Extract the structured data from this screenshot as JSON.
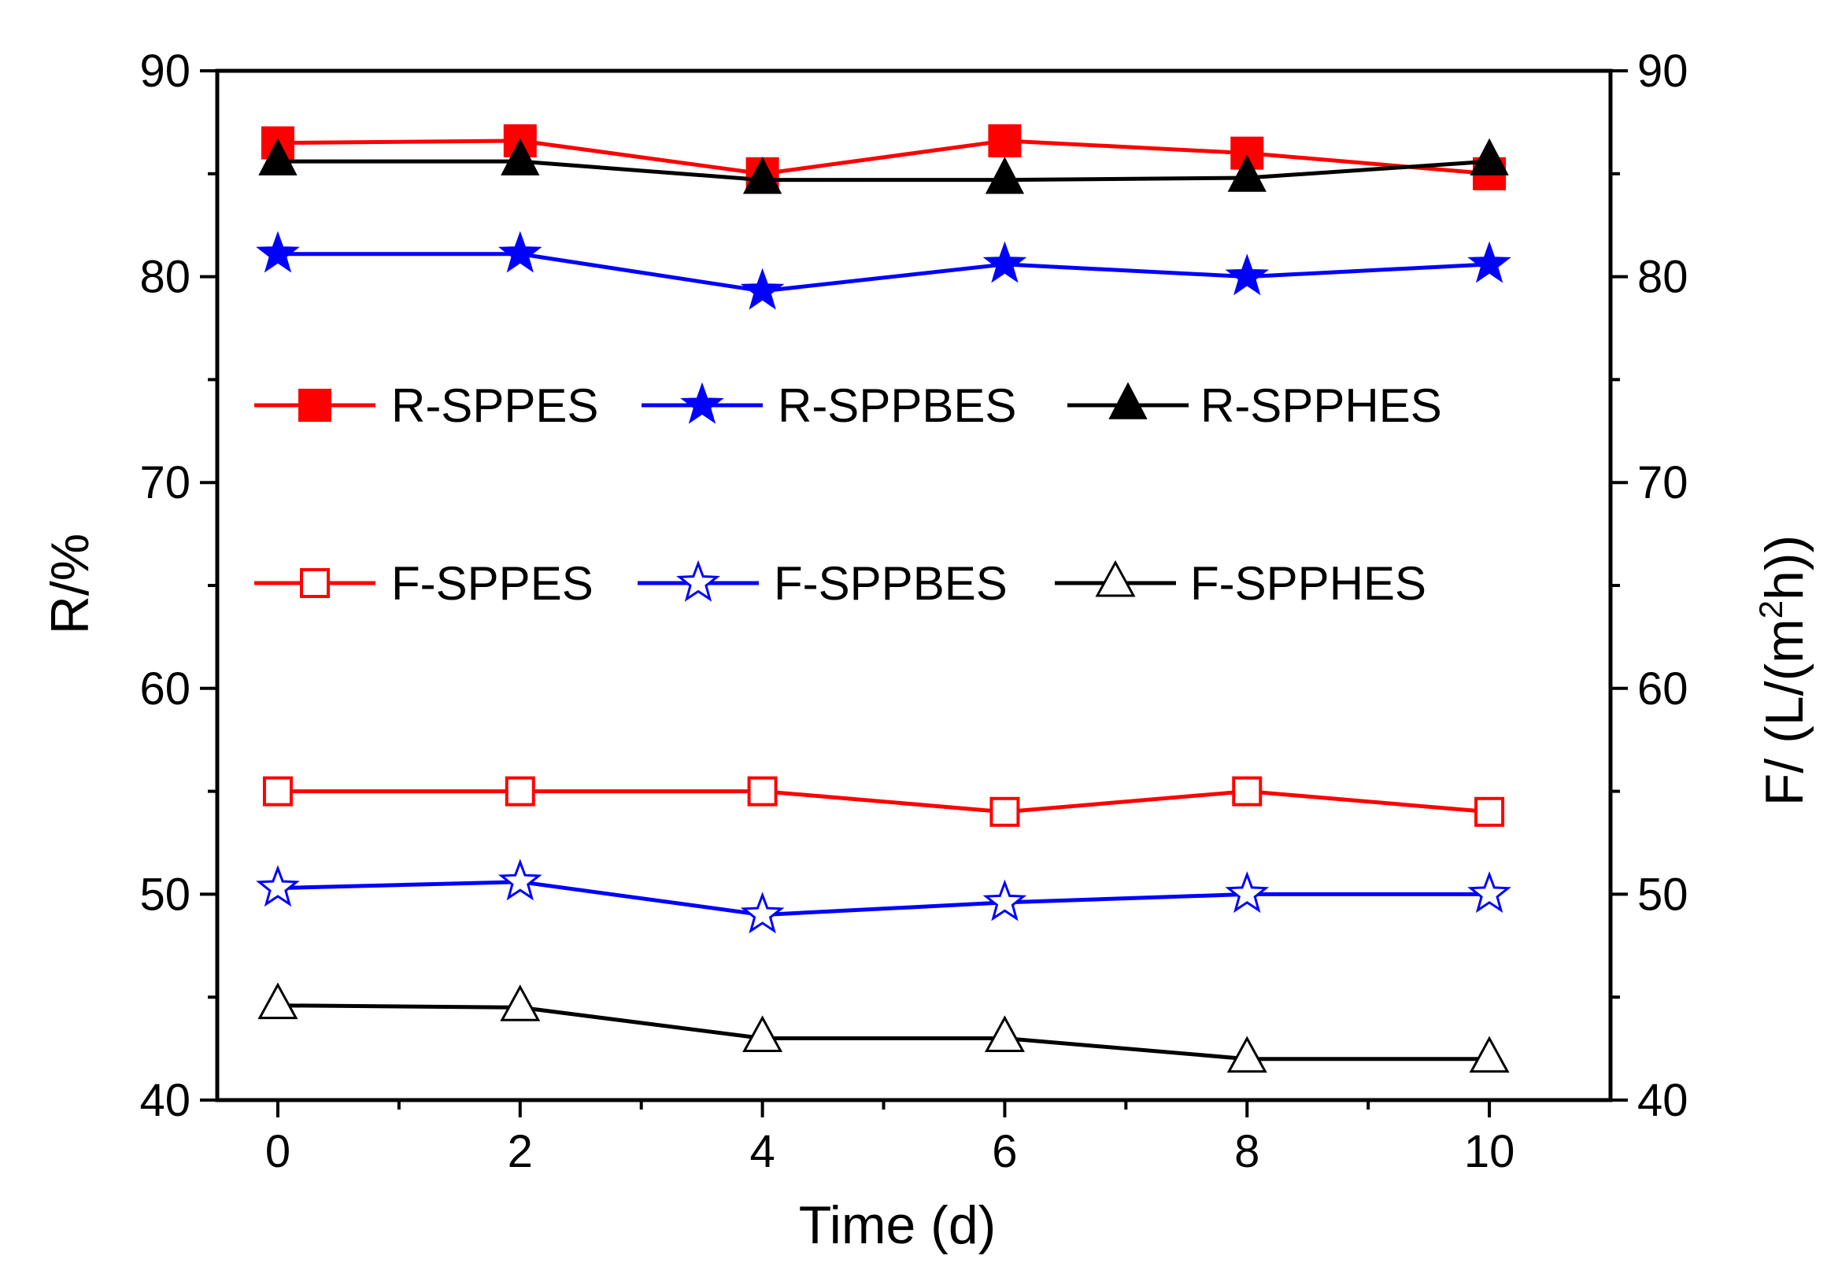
{
  "chart_data": {
    "type": "line",
    "x": [
      0,
      2,
      4,
      6,
      8,
      10
    ],
    "xlabel": "Time (d)",
    "ylabel": "R/%",
    "y2label_parts": [
      "F/ (L/(m",
      "2",
      "h))"
    ],
    "xlim": [
      -0.5,
      11
    ],
    "ylim": [
      40,
      90
    ],
    "y2lim": [
      40,
      90
    ],
    "xticks": [
      "0",
      "2",
      "4",
      "6",
      "8",
      "10"
    ],
    "xtick_values": [
      0,
      2,
      4,
      6,
      8,
      10
    ],
    "xminor_values": [
      1,
      3,
      5,
      7,
      9
    ],
    "yticks": [
      "40",
      "50",
      "60",
      "70",
      "80",
      "90"
    ],
    "ytick_values": [
      40,
      50,
      60,
      70,
      80,
      90
    ],
    "yminor_values": [
      45,
      55,
      65,
      75,
      85
    ],
    "series": [
      {
        "name": "R-SPPES",
        "color": "#ff0000",
        "marker": "square-filled",
        "values": [
          86.5,
          86.6,
          85.0,
          86.6,
          86.0,
          85.0
        ]
      },
      {
        "name": "R-SPPBES",
        "color": "#0000ff",
        "marker": "star-filled",
        "values": [
          81.1,
          81.1,
          79.3,
          80.6,
          80.0,
          80.6
        ]
      },
      {
        "name": "R-SPPHES",
        "color": "#000000",
        "marker": "triangle-filled",
        "values": [
          85.6,
          85.6,
          84.7,
          84.7,
          84.8,
          85.6
        ]
      },
      {
        "name": "F-SPPES",
        "color": "#ff0000",
        "marker": "square-open",
        "values": [
          55.0,
          55.0,
          55.0,
          54.0,
          55.0,
          54.0
        ]
      },
      {
        "name": "F-SPPBES",
        "color": "#0000ff",
        "marker": "star-open",
        "values": [
          50.3,
          50.6,
          49.0,
          49.6,
          50.0,
          50.0
        ]
      },
      {
        "name": "F-SPPHES",
        "color": "#000000",
        "marker": "triangle-open",
        "values": [
          44.6,
          44.5,
          43.0,
          43.0,
          42.0,
          42.0
        ]
      }
    ],
    "legend_position": "center-upper"
  }
}
